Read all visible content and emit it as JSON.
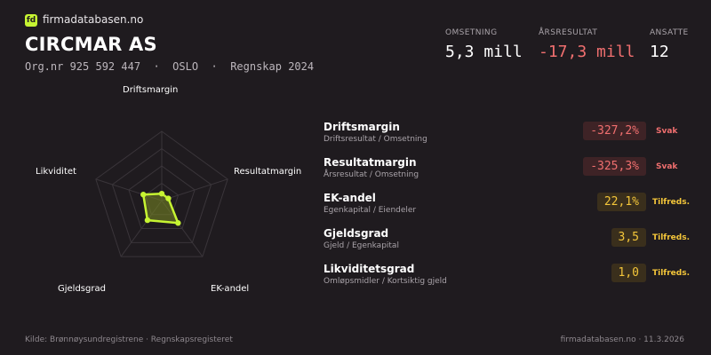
{
  "brand": {
    "logo_text": "fd",
    "name": "firmadatabasen.no"
  },
  "company": {
    "name": "CIRCMAR AS",
    "meta": "Org.nr 925 592 447  ·  OSLO  ·  Regnskap 2024"
  },
  "stats": [
    {
      "label": "OMSETNING",
      "value": "5,3 mill"
    },
    {
      "label": "ÅRSRESULTAT",
      "value": "-17,3 mill"
    },
    {
      "label": "ANSATTE",
      "value": "12"
    }
  ],
  "radar": {
    "axes": [
      "Driftsmargin",
      "Resultatmargin",
      "EK-andel",
      "Gjeldsgrad",
      "Likviditet"
    ],
    "levels": 4,
    "scores": [
      0.1,
      0.1,
      0.4,
      0.35,
      0.28
    ],
    "colors": {
      "line": "#c6f432",
      "fill": "#7a8a22",
      "grid": "#3a353a"
    }
  },
  "metrics": [
    {
      "title": "Driftsmargin",
      "sub": "Driftsresultat / Omsetning",
      "value": "-327,2%",
      "status": "Svak",
      "level": "bad"
    },
    {
      "title": "Resultatmargin",
      "sub": "Årsresultat / Omsetning",
      "value": "-325,3%",
      "status": "Svak",
      "level": "bad"
    },
    {
      "title": "EK-andel",
      "sub": "Egenkapital / Eiendeler",
      "value": "22,1%",
      "status": "Tilfreds.",
      "level": "ok"
    },
    {
      "title": "Gjeldsgrad",
      "sub": "Gjeld / Egenkapital",
      "value": "3,5",
      "status": "Tilfreds.",
      "level": "ok"
    },
    {
      "title": "Likviditetsgrad",
      "sub": "Omløpsmidler / Kortsiktig gjeld",
      "value": "1,0",
      "status": "Tilfreds.",
      "level": "ok"
    }
  ],
  "footer": {
    "source": "Kilde: Brønnøysundregistrene · Regnskapsregisteret",
    "site_date": "firmadatabasen.no · 11.3.2026"
  }
}
